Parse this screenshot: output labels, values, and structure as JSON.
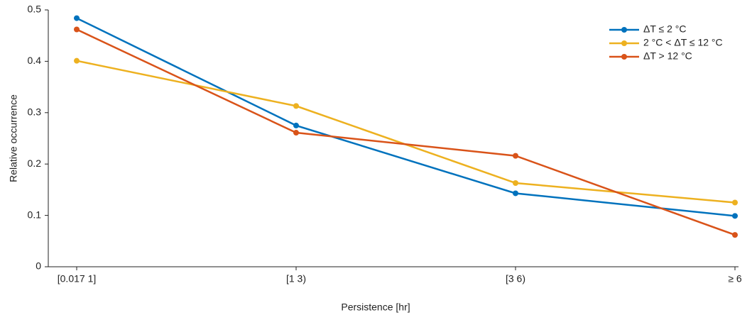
{
  "chart_data": {
    "type": "line",
    "x_label": "Persistence [hr]",
    "y_label": "Relative occurrence",
    "categories": [
      "[0.017 1]",
      "[1 3)",
      "[3 6)",
      "≥ 6"
    ],
    "series": [
      {
        "name": "ΔT ≤ 2 °C",
        "color": "#0072BD",
        "values": [
          0.484,
          0.275,
          0.143,
          0.099
        ]
      },
      {
        "name": "2 °C < ΔT ≤ 12 °C",
        "color": "#EDB120",
        "values": [
          0.401,
          0.313,
          0.163,
          0.125
        ]
      },
      {
        "name": "ΔT > 12 °C",
        "color": "#D95319",
        "values": [
          0.462,
          0.261,
          0.216,
          0.062
        ]
      }
    ],
    "ylim": [
      0,
      0.5
    ],
    "yticks": [
      0,
      0.1,
      0.2,
      0.3,
      0.4,
      0.5
    ],
    "legend": "upper right"
  }
}
